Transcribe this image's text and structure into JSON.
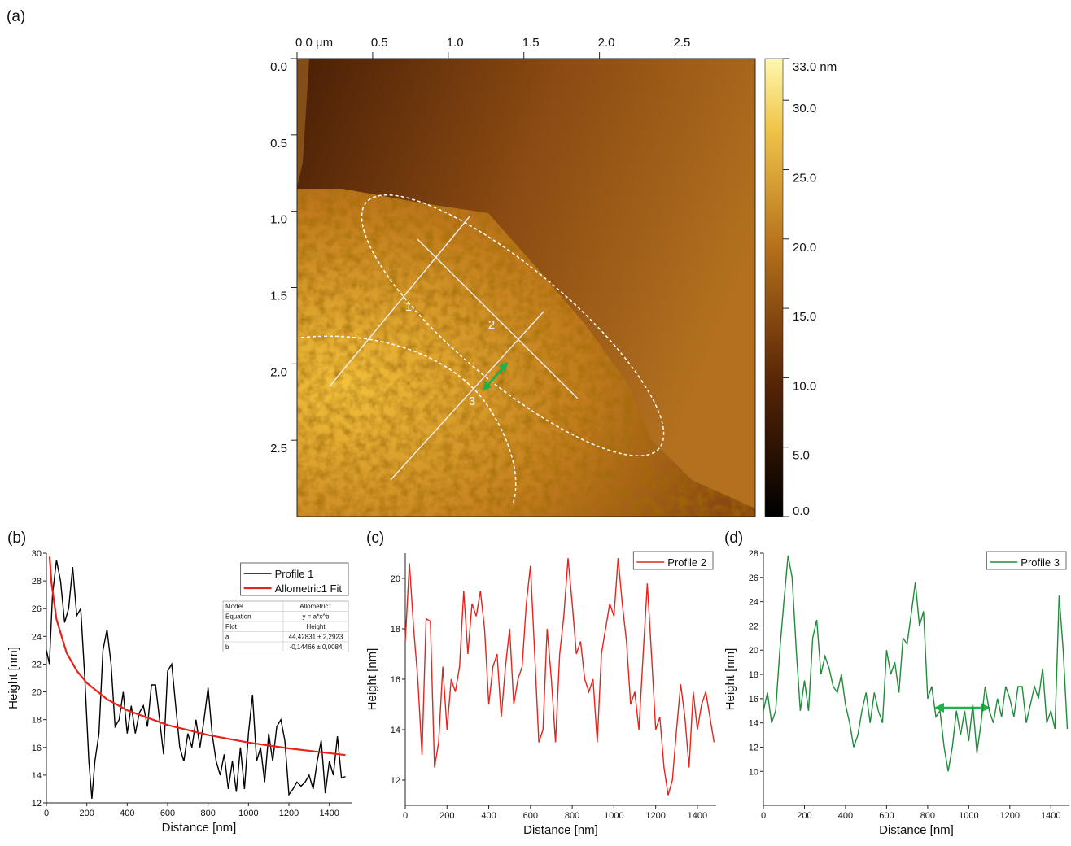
{
  "chart_data": [
    {
      "type": "image",
      "label": "(a)",
      "xlim": [
        0,
        3.03
      ],
      "ylim": [
        0,
        3.0
      ],
      "xticks": [
        {
          "value": 0,
          "label": "0.0 µm"
        },
        0.5,
        {
          "value": 1,
          "label": "1.0"
        },
        1.5,
        {
          "value": 2,
          "label": "2.0"
        },
        2.5
      ],
      "yticks": [
        {
          "value": 0,
          "label": "0.0"
        },
        0.5,
        {
          "value": 1,
          "label": "1.0"
        },
        1.5,
        {
          "value": 2,
          "label": "2.0"
        },
        2.5
      ],
      "clim": [
        0,
        33
      ],
      "cticks": [
        {
          "value": 0,
          "label": "0.0"
        },
        {
          "value": 5,
          "label": "5.0"
        },
        {
          "value": 10,
          "label": "10.0"
        },
        {
          "value": 15,
          "label": "15.0"
        },
        {
          "value": 20,
          "label": "20.0"
        },
        {
          "value": 25,
          "label": "25.0"
        },
        {
          "value": 30,
          "label": "30.0"
        },
        {
          "value": 33,
          "label": "33.0 nm"
        }
      ],
      "annotations": [
        "1",
        "2",
        "3"
      ]
    },
    {
      "type": "line",
      "label": "(b)",
      "xlabel": "Distance [nm]",
      "ylabel": "Height [nm]",
      "legend": "upper right",
      "xlim": [
        0,
        1510
      ],
      "ylim": [
        12,
        30
      ],
      "xticks": [
        0,
        200,
        400,
        600,
        800,
        1000,
        1200,
        1400
      ],
      "yticks": [
        12,
        14,
        16,
        18,
        20,
        22,
        24,
        26,
        28,
        30
      ],
      "x": [
        0,
        15,
        30,
        50,
        70,
        90,
        110,
        130,
        150,
        170,
        190,
        210,
        225,
        240,
        260,
        280,
        300,
        320,
        340,
        360,
        380,
        400,
        420,
        440,
        460,
        480,
        500,
        520,
        540,
        560,
        580,
        600,
        620,
        640,
        660,
        680,
        700,
        720,
        740,
        760,
        780,
        800,
        820,
        840,
        860,
        880,
        900,
        920,
        940,
        960,
        980,
        1000,
        1020,
        1040,
        1060,
        1080,
        1100,
        1120,
        1140,
        1160,
        1180,
        1200,
        1220,
        1240,
        1260,
        1280,
        1300,
        1320,
        1340,
        1360,
        1380,
        1400,
        1420,
        1440,
        1460,
        1480
      ],
      "series": [
        {
          "name": "Profile 1",
          "color": "#000000",
          "values": [
            23,
            22,
            27,
            29.5,
            28,
            25,
            26,
            29,
            25.5,
            26,
            21,
            15,
            12.3,
            15,
            17,
            23,
            24.5,
            22,
            17.5,
            18,
            20,
            17,
            19,
            17,
            18.5,
            19,
            17.5,
            20.5,
            20.5,
            18,
            15.5,
            21.5,
            22,
            19,
            16,
            15,
            17,
            16,
            18,
            16,
            18,
            20.3,
            17,
            15,
            14,
            15.5,
            13,
            15,
            12.8,
            16,
            13,
            17,
            19.8,
            15,
            16,
            13.5,
            17,
            15,
            17.5,
            18,
            16.5,
            12.6,
            13,
            13.5,
            13.2,
            13.5,
            14,
            13,
            15,
            16.5,
            12.7,
            15,
            14,
            16.8,
            13.8,
            13.9
          ]
        },
        {
          "name": "Allometric1 Fit",
          "color": "#e8231b",
          "x": [
            16,
            25,
            50,
            100,
            150,
            200,
            300,
            400,
            600,
            800,
            1000,
            1200,
            1480
          ],
          "values": [
            29.75,
            27.89,
            25.23,
            22.82,
            21.52,
            20.64,
            19.47,
            18.67,
            17.61,
            16.89,
            16.35,
            15.93,
            15.45
          ]
        }
      ],
      "fit_table": [
        [
          "Model",
          "Allometric1"
        ],
        [
          "Equation",
          "y = a*x^b"
        ],
        [
          "Plot",
          "Height"
        ],
        [
          "a",
          "44,42831 ± 2,2923"
        ],
        [
          "b",
          "-0,14466 ± 0,0084"
        ]
      ]
    },
    {
      "type": "line",
      "label": "(c)",
      "xlabel": "Distance [nm]",
      "ylabel": "Height [nm]",
      "legend": "upper right",
      "xlim": [
        0,
        1490
      ],
      "ylim": [
        11,
        21
      ],
      "xticks": [
        0,
        200,
        400,
        600,
        800,
        1000,
        1200,
        1400
      ],
      "yticks": [
        12,
        14,
        16,
        18,
        20
      ],
      "x": [
        0,
        20,
        40,
        60,
        80,
        100,
        120,
        140,
        160,
        180,
        200,
        220,
        240,
        260,
        280,
        300,
        320,
        340,
        360,
        380,
        400,
        420,
        440,
        460,
        480,
        500,
        520,
        540,
        560,
        580,
        600,
        620,
        640,
        660,
        680,
        700,
        720,
        740,
        760,
        780,
        800,
        820,
        840,
        860,
        880,
        900,
        920,
        940,
        960,
        980,
        1000,
        1020,
        1040,
        1060,
        1080,
        1100,
        1120,
        1140,
        1160,
        1180,
        1200,
        1220,
        1240,
        1260,
        1280,
        1300,
        1320,
        1340,
        1360,
        1380,
        1400,
        1420,
        1440,
        1460,
        1480
      ],
      "series": [
        {
          "name": "Profile 2",
          "color": "#e8231b",
          "values": [
            17.5,
            20.6,
            18,
            16,
            13,
            18.4,
            18.3,
            12.5,
            13.5,
            16.5,
            14,
            16,
            15.5,
            16.5,
            19.5,
            17,
            19,
            18.5,
            19.5,
            18,
            15,
            16.5,
            17,
            14.5,
            16.5,
            18,
            15,
            16,
            16.5,
            19,
            20.5,
            17,
            13.5,
            14,
            18,
            16,
            13.5,
            17,
            18.5,
            20.8,
            19,
            17,
            17.5,
            16,
            15.5,
            16,
            13.5,
            17,
            18,
            19,
            18.5,
            20.8,
            19,
            17.5,
            15,
            15.5,
            14,
            17,
            19.8,
            17,
            14,
            14.5,
            12.5,
            11.4,
            12,
            14,
            15.8,
            14.5,
            12.5,
            15.5,
            14,
            15,
            15.5,
            14.5,
            13.5
          ]
        }
      ]
    },
    {
      "type": "line",
      "label": "(d)",
      "xlabel": "Distance [nm]",
      "ylabel": "Height [nm]",
      "legend": "upper right",
      "xlim": [
        0,
        1490
      ],
      "ylim": [
        7.2,
        28
      ],
      "xticks": [
        0,
        200,
        400,
        600,
        800,
        1000,
        1200,
        1400
      ],
      "yticks": [
        10,
        12,
        14,
        16,
        18,
        20,
        22,
        24,
        26,
        28
      ],
      "x": [
        0,
        20,
        40,
        60,
        80,
        100,
        120,
        140,
        160,
        180,
        200,
        220,
        240,
        260,
        280,
        300,
        320,
        340,
        360,
        380,
        400,
        420,
        440,
        460,
        480,
        500,
        520,
        540,
        560,
        580,
        600,
        620,
        640,
        660,
        680,
        700,
        720,
        740,
        760,
        780,
        800,
        820,
        840,
        860,
        880,
        900,
        920,
        940,
        960,
        980,
        1000,
        1020,
        1040,
        1060,
        1080,
        1100,
        1120,
        1140,
        1160,
        1180,
        1200,
        1220,
        1240,
        1260,
        1280,
        1300,
        1320,
        1340,
        1360,
        1380,
        1400,
        1420,
        1440,
        1460,
        1480
      ],
      "series": [
        {
          "name": "Profile 3",
          "color": "#1e8c3a",
          "values": [
            15,
            16.5,
            14,
            15,
            20,
            24,
            27.8,
            26,
            20,
            15,
            17.5,
            15,
            21,
            22.5,
            18,
            19.5,
            18.5,
            17,
            16.5,
            18,
            15.5,
            14,
            12,
            13,
            15,
            16.5,
            14,
            16.5,
            15,
            14,
            20,
            18,
            19,
            16.5,
            21,
            20.5,
            23,
            25.6,
            22,
            23.2,
            16,
            17,
            14.5,
            15,
            12,
            10,
            12,
            15,
            13,
            15,
            12.5,
            15.5,
            11.5,
            14,
            17,
            15,
            14,
            16,
            14.5,
            17,
            16,
            14.5,
            17,
            17,
            14,
            15.5,
            17,
            16,
            18.5,
            14,
            15,
            13.5,
            24.5,
            20,
            13.5
          ]
        }
      ]
    }
  ]
}
